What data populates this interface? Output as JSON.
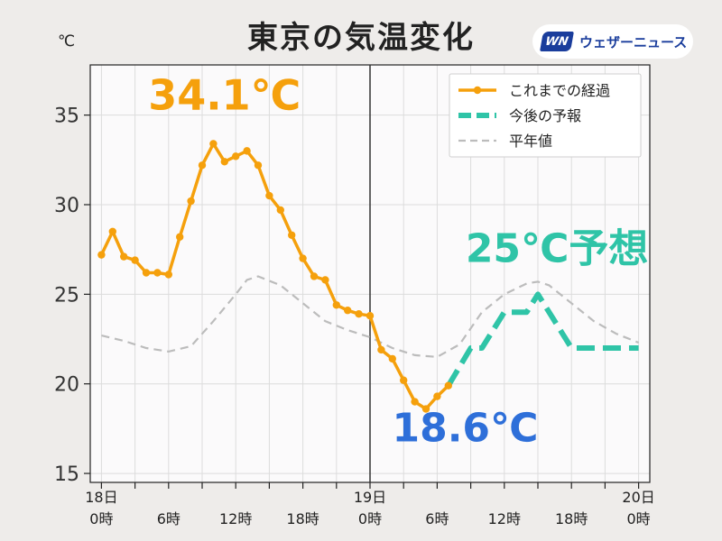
{
  "header": {
    "title": "東京の気温変化",
    "unit": "℃",
    "brand_logo": "WN",
    "brand_name": "ウェザーニュース"
  },
  "chart_data": {
    "type": "line",
    "title": "東京の気温変化",
    "ylabel": "℃",
    "ylim": [
      14.5,
      37.8
    ],
    "xlim": [
      -1,
      49
    ],
    "yticks": [
      15,
      20,
      25,
      30,
      35
    ],
    "xticks": [
      {
        "x": 0,
        "label": "18日\n0時"
      },
      {
        "x": 3,
        "label": ""
      },
      {
        "x": 6,
        "label": "6時"
      },
      {
        "x": 9,
        "label": ""
      },
      {
        "x": 12,
        "label": "12時"
      },
      {
        "x": 15,
        "label": ""
      },
      {
        "x": 18,
        "label": "18時"
      },
      {
        "x": 21,
        "label": ""
      },
      {
        "x": 24,
        "label": "19日\n0時"
      },
      {
        "x": 27,
        "label": ""
      },
      {
        "x": 30,
        "label": "6時"
      },
      {
        "x": 33,
        "label": ""
      },
      {
        "x": 36,
        "label": "12時"
      },
      {
        "x": 39,
        "label": ""
      },
      {
        "x": 42,
        "label": "18時"
      },
      {
        "x": 45,
        "label": ""
      },
      {
        "x": 48,
        "label": "20日\n0時"
      }
    ],
    "grid": true,
    "now_x": 24,
    "legend_position": "top-right",
    "series": [
      {
        "name": "これまでの経過",
        "color": "#f5a00c",
        "style": "solid-markers",
        "x": [
          0,
          1,
          2,
          3,
          4,
          5,
          6,
          7,
          8,
          9,
          10,
          11,
          12,
          13,
          14,
          15,
          16,
          17,
          18,
          19,
          20,
          21,
          22,
          23,
          24,
          25,
          26,
          27,
          28,
          29,
          30,
          31
        ],
        "y": [
          27.2,
          28.5,
          27.1,
          26.9,
          26.2,
          26.2,
          26.1,
          28.2,
          30.2,
          32.2,
          33.4,
          32.4,
          32.7,
          33.0,
          32.2,
          30.5,
          29.7,
          28.3,
          27.0,
          26.0,
          25.8,
          24.4,
          24.1,
          23.9,
          23.8,
          21.9,
          21.4,
          20.2,
          19.0,
          18.6,
          19.3,
          19.9
        ]
      },
      {
        "name": "今後の予報",
        "color": "#2fc4a7",
        "style": "dashed-thick",
        "x": [
          31,
          33,
          34,
          36,
          38,
          39,
          40,
          42,
          45,
          48
        ],
        "y": [
          19.9,
          22.0,
          22.0,
          24.0,
          24.0,
          25.0,
          24.0,
          22.0,
          22.0,
          22.0
        ]
      },
      {
        "name": "平年値",
        "color": "#bcbcbc",
        "style": "dashed-thin",
        "x": [
          0,
          2,
          4,
          6,
          8,
          10,
          12,
          13,
          14,
          16,
          18,
          20,
          22,
          24,
          26,
          28,
          30,
          32,
          34,
          36,
          38,
          39,
          40,
          42,
          44,
          46,
          48
        ],
        "y": [
          22.7,
          22.4,
          22.0,
          21.8,
          22.1,
          23.5,
          25.0,
          25.8,
          26.0,
          25.5,
          24.5,
          23.5,
          23.0,
          22.6,
          22.0,
          21.6,
          21.5,
          22.2,
          24.0,
          25.0,
          25.6,
          25.7,
          25.5,
          24.5,
          23.5,
          22.8,
          22.3
        ]
      }
    ],
    "annotations": [
      {
        "text": "34.1℃",
        "x": 11,
        "y": 35.3,
        "color": "#f5a00c",
        "role": "max"
      },
      {
        "text": "18.6℃",
        "x": 32.5,
        "y": 16.8,
        "color": "#2e6fd9",
        "role": "min"
      },
      {
        "text": "25℃予想",
        "x": 40.7,
        "y": 26.8,
        "color": "#2fc4a7",
        "role": "forecast"
      }
    ]
  }
}
